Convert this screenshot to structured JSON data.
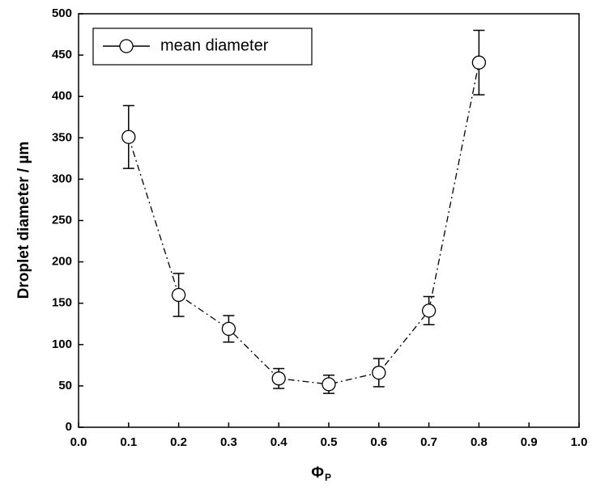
{
  "chart_data": {
    "type": "line",
    "x_label": "Φ",
    "x_label_sub": "P",
    "y_label": "Droplet diameter / µm",
    "x": [
      0.1,
      0.2,
      0.3,
      0.4,
      0.5,
      0.6,
      0.7,
      0.8
    ],
    "series": [
      {
        "name": "mean diameter",
        "color": "#000000",
        "values": [
          351,
          160,
          119,
          59,
          52,
          66,
          141,
          441
        ],
        "errors": [
          38,
          26,
          16,
          12,
          11,
          17,
          17,
          39
        ]
      }
    ],
    "xlim": [
      0,
      1
    ],
    "xticks": [
      {
        "value": 0,
        "label": "0.0"
      },
      0.1,
      0.2,
      0.3,
      0.4,
      0.5,
      0.6,
      0.7,
      0.8,
      0.9,
      {
        "value": 1,
        "label": "1.0"
      }
    ],
    "ylim": [
      0,
      500
    ],
    "yticks": [
      0,
      50,
      100,
      150,
      200,
      250,
      300,
      350,
      400,
      450,
      500
    ],
    "legend": "upper left"
  }
}
